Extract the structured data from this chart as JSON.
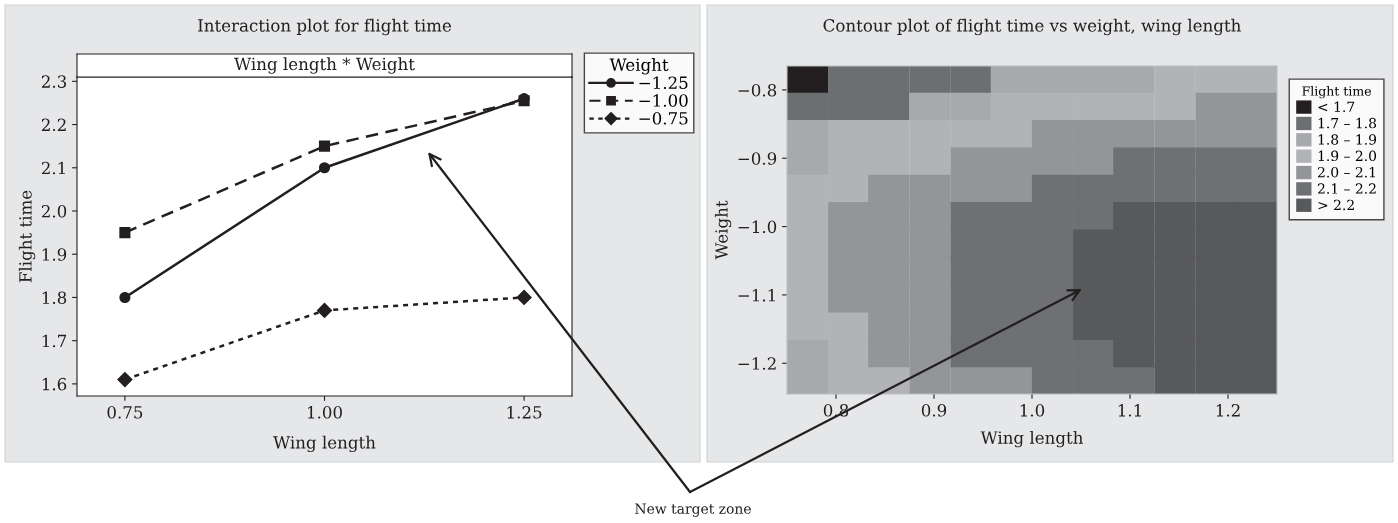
{
  "chart_data": [
    {
      "type": "line",
      "title": "Interaction plot for flight time",
      "subtitle": "Wing length * Weight",
      "xlabel": "Wing length",
      "ylabel": "Flight time",
      "legend_title": "Weight",
      "legend": "top right",
      "grid": false,
      "x": [
        0.75,
        1.0,
        1.25
      ],
      "series": [
        {
          "name": "−1.25",
          "color": "#231f20",
          "marker": "circle",
          "line_style": "solid",
          "values": [
            1.8,
            2.1,
            2.26
          ]
        },
        {
          "name": "−1.00",
          "color": "#231f20",
          "marker": "square",
          "line_style": "dashed",
          "values": [
            1.95,
            2.15,
            2.255
          ]
        },
        {
          "name": "−0.75",
          "color": "#231f20",
          "marker": "diamond",
          "line_style": "dotted",
          "values": [
            1.61,
            1.77,
            1.8
          ]
        }
      ],
      "xlim": [
        0.69,
        1.31
      ],
      "xticks": [
        {
          "value": 0.75,
          "label": "0.75"
        },
        {
          "value": 1.0,
          "label": "1.00"
        },
        {
          "value": 1.25,
          "label": "1.25"
        }
      ],
      "ylim": [
        1.572,
        2.31
      ],
      "yticks": [
        1.6,
        1.7,
        1.8,
        1.9,
        {
          "value": 2.0,
          "label": "2.0"
        },
        2.1,
        2.2,
        2.3
      ],
      "annotations": [
        "New target zone"
      ]
    },
    {
      "type": "scatter",
      "title": "Contour plot of flight time vs weight, wing length",
      "xlabel": "Wing length",
      "ylabel": "Weight",
      "legend_title": "Flight time",
      "legend": "top right",
      "marker": "square",
      "series": [
        {
          "name": "< 1.7",
          "color": "#231f20",
          "x": [
            0.771
          ],
          "values": [
            -0.785
          ]
        },
        {
          "name": "1.7 – 1.8",
          "color": "#6d6e71",
          "x": [
            0.813,
            0.854,
            0.896,
            0.938,
            0.771,
            0.813,
            0.854
          ],
          "values": [
            -0.785,
            -0.785,
            -0.785,
            -0.785,
            -0.825,
            -0.825,
            -0.825
          ]
        },
        {
          "name": "1.8 – 1.9",
          "color": "#a7a9ac",
          "x": [
            0.979,
            1.021,
            1.063,
            1.104,
            0.896,
            0.938,
            0.771,
            0.771,
            0.771,
            0.771
          ],
          "values": [
            -0.785,
            -0.785,
            -0.785,
            -0.785,
            -0.825,
            -0.825,
            -0.865,
            -0.905,
            -1.185,
            -1.225
          ]
        },
        {
          "name": "1.9 – 2.0",
          "color": "#b1b3b6",
          "x": [
            1.146,
            1.188,
            1.229,
            0.979,
            1.021,
            1.063,
            1.104,
            1.146,
            0.813,
            0.854,
            0.896,
            0.938,
            0.979,
            0.813,
            0.854,
            0.896,
            0.771,
            0.813,
            0.771,
            0.771,
            0.771,
            0.771,
            0.771,
            0.813,
            0.813,
            0.813,
            0.854
          ],
          "values": [
            -0.785,
            -0.785,
            -0.785,
            -0.825,
            -0.825,
            -0.825,
            -0.825,
            -0.825,
            -0.865,
            -0.865,
            -0.865,
            -0.865,
            -0.865,
            -0.905,
            -0.905,
            -0.905,
            -0.945,
            -0.945,
            -0.985,
            -1.025,
            -1.065,
            -1.105,
            -1.145,
            -1.145,
            -1.185,
            -1.225,
            -1.225
          ]
        },
        {
          "name": "2.0 – 2.1",
          "color": "#939598",
          "x": [
            1.188,
            1.229,
            1.021,
            1.063,
            1.104,
            1.146,
            1.188,
            1.229,
            0.938,
            0.979,
            1.021,
            1.063,
            0.854,
            0.896,
            0.938,
            0.979,
            0.813,
            0.854,
            0.896,
            0.813,
            0.854,
            0.896,
            0.813,
            0.854,
            0.896,
            0.813,
            0.854,
            0.896,
            0.854,
            0.896,
            0.854,
            0.896,
            0.896,
            0.938,
            0.979
          ],
          "values": [
            -0.825,
            -0.825,
            -0.865,
            -0.865,
            -0.865,
            -0.865,
            -0.865,
            -0.865,
            -0.905,
            -0.905,
            -0.905,
            -0.905,
            -0.945,
            -0.945,
            -0.945,
            -0.945,
            -0.985,
            -0.985,
            -0.985,
            -1.025,
            -1.025,
            -1.025,
            -1.065,
            -1.065,
            -1.065,
            -1.105,
            -1.105,
            -1.105,
            -1.145,
            -1.145,
            -1.185,
            -1.185,
            -1.225,
            -1.225,
            -1.225
          ]
        },
        {
          "name": "2.1 – 2.2",
          "color": "#6f7073",
          "x": [
            1.104,
            1.146,
            1.188,
            1.229,
            1.021,
            1.063,
            1.104,
            1.146,
            1.188,
            1.229,
            0.938,
            0.979,
            1.021,
            1.063,
            0.938,
            0.979,
            1.021,
            0.938,
            0.979,
            1.021,
            0.938,
            0.979,
            1.021,
            0.938,
            0.979,
            1.021,
            0.938,
            0.979,
            1.021,
            1.063,
            1.021,
            1.063,
            1.104
          ],
          "values": [
            -0.905,
            -0.905,
            -0.905,
            -0.905,
            -0.945,
            -0.945,
            -0.945,
            -0.945,
            -0.945,
            -0.945,
            -0.985,
            -0.985,
            -0.985,
            -0.985,
            -1.025,
            -1.025,
            -1.025,
            -1.065,
            -1.065,
            -1.065,
            -1.105,
            -1.105,
            -1.105,
            -1.145,
            -1.145,
            -1.145,
            -1.185,
            -1.185,
            -1.185,
            -1.185,
            -1.225,
            -1.225,
            -1.225
          ]
        },
        {
          "name": "> 2.2",
          "color": "#58595b",
          "x": [
            1.104,
            1.146,
            1.188,
            1.229,
            1.063,
            1.104,
            1.146,
            1.188,
            1.229,
            1.063,
            1.104,
            1.146,
            1.188,
            1.229,
            1.063,
            1.104,
            1.146,
            1.188,
            1.229,
            1.063,
            1.104,
            1.146,
            1.188,
            1.229,
            1.104,
            1.146,
            1.188,
            1.229,
            1.146,
            1.188,
            1.229
          ],
          "values": [
            -0.985,
            -0.985,
            -0.985,
            -0.985,
            -1.025,
            -1.025,
            -1.025,
            -1.025,
            -1.025,
            -1.065,
            -1.065,
            -1.065,
            -1.065,
            -1.065,
            -1.105,
            -1.105,
            -1.105,
            -1.105,
            -1.105,
            -1.145,
            -1.145,
            -1.145,
            -1.145,
            -1.145,
            -1.185,
            -1.185,
            -1.185,
            -1.185,
            -1.225,
            -1.225,
            -1.225
          ]
        }
      ],
      "xlim": [
        0.75,
        1.25
      ],
      "xticks": [
        0.8,
        0.9,
        {
          "value": 1.0,
          "label": "1.0"
        },
        1.1,
        1.2
      ],
      "ylim": [
        -1.245,
        -0.765
      ],
      "yticks": [
        {
          "value": -0.8,
          "label": "−0.8"
        },
        {
          "value": -0.9,
          "label": "−0.9"
        },
        {
          "value": -1.0,
          "label": "−1.0"
        },
        {
          "value": -1.1,
          "label": "−1.1"
        },
        {
          "value": -1.2,
          "label": "−1.2"
        }
      ]
    }
  ]
}
